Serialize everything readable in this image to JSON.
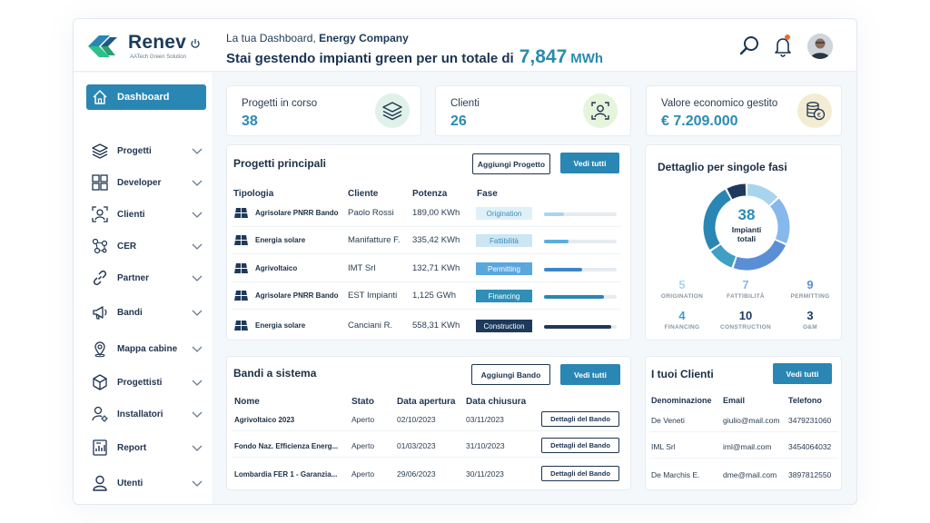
{
  "brand": {
    "name": "Renev",
    "sub": "AATech Green Solution"
  },
  "header": {
    "greeting_prefix": "La tua Dashboard,",
    "company": "Energy Company",
    "headline": "Stai gestendo impianti green per un totale di",
    "total_value": "7,847",
    "total_unit": "MWh"
  },
  "sidebar": {
    "items": [
      {
        "label": "Dashboard",
        "icon": "home-icon"
      },
      {
        "label": "Progetti",
        "icon": "layers-icon"
      },
      {
        "label": "Developer",
        "icon": "grid-icon"
      },
      {
        "label": "Clienti",
        "icon": "user-frame-icon"
      },
      {
        "label": "CER",
        "icon": "network-icon"
      },
      {
        "label": "Partner",
        "icon": "link-icon"
      },
      {
        "label": "Bandi",
        "icon": "megaphone-icon"
      },
      {
        "label": "Mappa cabine",
        "icon": "map-pin-icon"
      },
      {
        "label": "Progettisti",
        "icon": "box-icon"
      },
      {
        "label": "Installatori",
        "icon": "user-gear-icon"
      },
      {
        "label": "Report",
        "icon": "report-icon"
      },
      {
        "label": "Utenti",
        "icon": "user-icon"
      }
    ]
  },
  "stats": {
    "projects": {
      "label": "Progetti in corso",
      "value": "38"
    },
    "clients": {
      "label": "Clienti",
      "value": "26"
    },
    "value": {
      "label": "Valore economico gestito",
      "value": "€ 7.209.000"
    }
  },
  "projects": {
    "title": "Progetti principali",
    "add_label": "Aggiungi Progetto",
    "view_all": "Vedi tutti",
    "headers": [
      "Tipologia",
      "Cliente",
      "Potenza",
      "Fase"
    ],
    "rows": [
      {
        "type": "Agrisolare PNRR Bando",
        "client": "Paolo Rossi",
        "power": "189,00 KWh",
        "phase": "Origination",
        "progress": 0.28
      },
      {
        "type": "Energia solare",
        "client": "Manifatture F.",
        "power": "335,42 KWh",
        "phase": "Fattibilità",
        "progress": 0.34
      },
      {
        "type": "Agrivoltaico",
        "client": "IMT Srl",
        "power": "132,71 KWh",
        "phase": "Permitting",
        "progress": 0.52
      },
      {
        "type": "Agrisolare PNRR Bando",
        "client": "EST Impianti",
        "power": "1,125 GWh",
        "phase": "Financing",
        "progress": 0.82
      },
      {
        "type": "Energia solare",
        "client": "Canciani R.",
        "power": "558,31 KWh",
        "phase": "Construction",
        "progress": 0.93
      }
    ],
    "phase_colors": {
      "Origination": {
        "bg": "#dff0f8",
        "fg": "#3b8fb8",
        "bar": "#a9d4ee"
      },
      "Fattibilità": {
        "bg": "#cde6f4",
        "fg": "#3b8fb8",
        "bar": "#5aaede"
      },
      "Permitting": {
        "bg": "#5aa7de",
        "fg": "#ffffff",
        "bar": "#3d86c6"
      },
      "Financing": {
        "bg": "#2f8fb6",
        "fg": "#ffffff",
        "bar": "#2a86b3"
      },
      "Construction": {
        "bg": "#1d3a5c",
        "fg": "#ffffff",
        "bar": "#1d3a5c"
      }
    }
  },
  "phases": {
    "title": "Dettaglio per singole fasi",
    "total": "38",
    "total_label": "Impianti totali",
    "items": [
      {
        "value": 5,
        "label": "ORIGINATION",
        "color": "#a9d4ee"
      },
      {
        "value": 7,
        "label": "FATTIBILITÀ",
        "color": "#86b8ec"
      },
      {
        "value": 9,
        "label": "PERMITTING",
        "color": "#5a8fd6"
      },
      {
        "value": 4,
        "label": "FINANCING",
        "color": "#3f9fc4"
      },
      {
        "value": 10,
        "label": "CONSTRUCTION",
        "color": "#2a86b3"
      },
      {
        "value": 3,
        "label": "O&M",
        "color": "#1d3a5c"
      }
    ]
  },
  "tenders": {
    "title": "Bandi a sistema",
    "add_label": "Aggiungi Bando",
    "view_all": "Vedi tutti",
    "headers": [
      "Nome",
      "Stato",
      "Data apertura",
      "Data chiusura"
    ],
    "detail_label": "Dettagli del Bando",
    "rows": [
      {
        "name": "Agrivoltaico 2023",
        "status": "Aperto",
        "open": "02/10/2023",
        "close": "03/11/2023"
      },
      {
        "name": "Fondo Naz. Efficienza Energ...",
        "status": "Aperto",
        "open": "01/03/2023",
        "close": "31/10/2023"
      },
      {
        "name": "Lombardia FER 1 - Garanzia...",
        "status": "Aperto",
        "open": "29/06/2023",
        "close": "30/11/2023"
      }
    ]
  },
  "clients": {
    "title": "I tuoi Clienti",
    "view_all": "Vedi tutti",
    "headers": [
      "Denominazione",
      "Email",
      "Telefono"
    ],
    "rows": [
      {
        "name": "De Veneti",
        "email": "giulio@mail.com",
        "phone": "3479231060"
      },
      {
        "name": "IML Srl",
        "email": "iml@mail.com",
        "phone": "3454064032"
      },
      {
        "name": "De Marchis E.",
        "email": "dme@mail.com",
        "phone": "3897812550"
      }
    ]
  }
}
